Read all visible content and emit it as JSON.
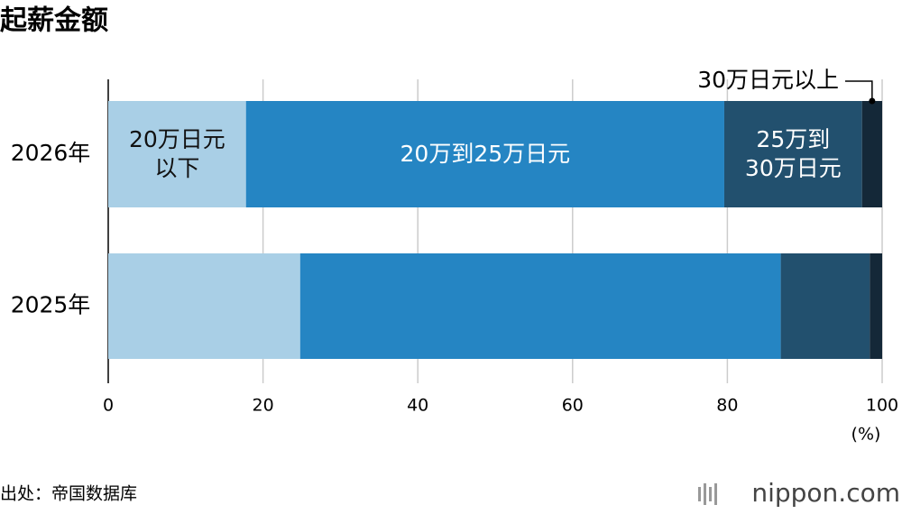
{
  "chart_data": {
    "type": "stacked_barh",
    "title": "起薪金额",
    "categories": [
      "2026年",
      "2025年"
    ],
    "series": [
      {
        "name": "20万日元\n以下",
        "color": "#a9cfe6",
        "values": [
          17.8,
          24.8
        ]
      },
      {
        "name": "20万到25万日元",
        "color": "#2585c3",
        "values": [
          61.8,
          62.1
        ]
      },
      {
        "name": "25万到\n30万日元",
        "color": "#22506e",
        "values": [
          17.8,
          11.5
        ]
      },
      {
        "name": "30万日元以上",
        "color": "#142838",
        "values": [
          2.6,
          1.6
        ]
      }
    ],
    "xlim": [
      0,
      100
    ],
    "xticks": [
      0,
      20,
      40,
      60,
      80,
      100
    ],
    "x_unit": "(%)",
    "grid": true,
    "source": "出处：帝国数据库",
    "brand": "nippon.com"
  }
}
